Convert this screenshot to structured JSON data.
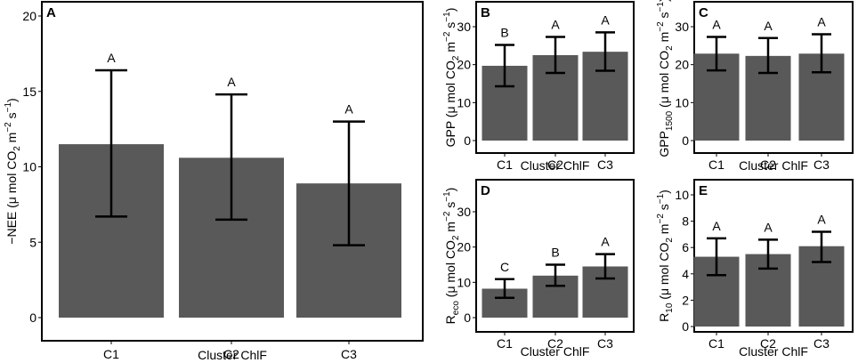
{
  "figure": {
    "colors": {
      "bar": "#595959",
      "error_bar": "#000000",
      "frame": "#000000",
      "background": "#ffffff"
    }
  },
  "chart_data": [
    {
      "panel": "A",
      "type": "bar",
      "categories": [
        "C1",
        "C2",
        "C3"
      ],
      "values": [
        11.5,
        10.6,
        8.9
      ],
      "error_low": [
        6.7,
        6.5,
        4.8
      ],
      "error_high": [
        16.4,
        14.8,
        13.0
      ],
      "significance": [
        "A",
        "A",
        "A"
      ],
      "xlabel": "Cluster ChlF",
      "ylabel": {
        "pre": "−NEE (μ mol CO",
        "sub": "2",
        "mid": " m",
        "sup": "−2",
        "mid2": " s",
        "sup2": "−1",
        "post": ")"
      },
      "ylim": [
        0,
        20
      ],
      "yticks": [
        0,
        5,
        10,
        15,
        20
      ]
    },
    {
      "panel": "B",
      "type": "bar",
      "categories": [
        "C1",
        "C2",
        "C3"
      ],
      "values": [
        19.7,
        22.5,
        23.4
      ],
      "error_low": [
        14.3,
        17.8,
        18.4
      ],
      "error_high": [
        25.2,
        27.3,
        28.5
      ],
      "significance": [
        "B",
        "A",
        "A"
      ],
      "xlabel": "Cluster ChlF",
      "ylabel": {
        "pre": "GPP (μ mol CO",
        "sub": "2",
        "mid": " m",
        "sup": "−2",
        "mid2": " s",
        "sup2": "−1",
        "post": ")"
      },
      "ylim": [
        0,
        30
      ],
      "yticks": [
        0,
        10,
        20,
        30
      ]
    },
    {
      "panel": "C",
      "type": "bar",
      "categories": [
        "C1",
        "C2",
        "C3"
      ],
      "values": [
        22.9,
        22.3,
        22.9
      ],
      "error_low": [
        18.5,
        17.8,
        18.0
      ],
      "error_high": [
        27.3,
        27.0,
        28.0
      ],
      "significance": [
        "A",
        "A",
        "A"
      ],
      "xlabel": "Cluster ChlF",
      "ylabel": {
        "pre": "GPP",
        "presub": "1500",
        "pre2": " (μ mol CO",
        "sub": "2",
        "mid": " m",
        "sup": "−2",
        "mid2": " s",
        "sup2": "−1",
        "post": ")"
      },
      "ylim": [
        0,
        30
      ],
      "yticks": [
        0,
        10,
        20,
        30
      ]
    },
    {
      "panel": "D",
      "type": "bar",
      "categories": [
        "C1",
        "C2",
        "C3"
      ],
      "values": [
        8.2,
        11.9,
        14.5
      ],
      "error_low": [
        5.6,
        9.0,
        11.1
      ],
      "error_high": [
        10.9,
        15.0,
        18.0
      ],
      "significance": [
        "C",
        "B",
        "A"
      ],
      "xlabel": "Cluster ChlF",
      "ylabel": {
        "pre": "R",
        "presub": "eco",
        "pre2": " (μ mol CO",
        "sub": "2",
        "mid": " m",
        "sup": "−2",
        "mid2": " s",
        "sup2": "−1",
        "post": ")"
      },
      "ylim": [
        0,
        30
      ],
      "yticks": [
        0,
        10,
        20,
        30
      ]
    },
    {
      "panel": "E",
      "type": "bar",
      "categories": [
        "C1",
        "C2",
        "C3"
      ],
      "values": [
        5.3,
        5.5,
        6.1
      ],
      "error_low": [
        3.9,
        4.4,
        4.9
      ],
      "error_high": [
        6.7,
        6.6,
        7.2
      ],
      "significance": [
        "A",
        "A",
        "A"
      ],
      "xlabel": "Cluster ChlF",
      "ylabel": {
        "pre": "R",
        "presub": "10",
        "pre2": " (μ mol CO",
        "sub": "2",
        "mid": " m",
        "sup": "−2",
        "mid2": " s",
        "sup2": "−1",
        "post": ")"
      },
      "ylim": [
        0,
        10
      ],
      "yticks": [
        0,
        2,
        4,
        6,
        8,
        10
      ]
    }
  ]
}
